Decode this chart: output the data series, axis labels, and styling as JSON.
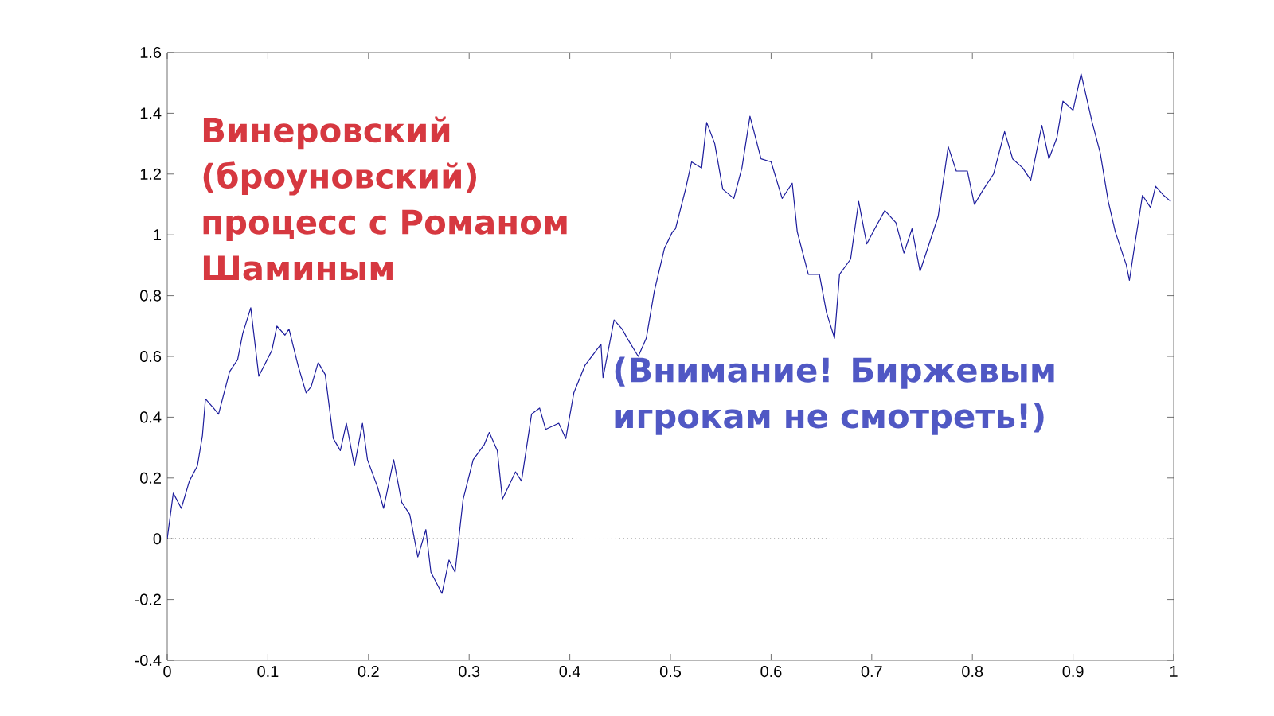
{
  "chart_data": {
    "type": "line",
    "x": [
      0,
      0.006,
      0.014,
      0.022,
      0.03,
      0.035,
      0.038,
      0.046,
      0.051,
      0.062,
      0.07,
      0.075,
      0.083,
      0.091,
      0.104,
      0.109,
      0.117,
      0.121,
      0.13,
      0.138,
      0.143,
      0.15,
      0.157,
      0.165,
      0.172,
      0.178,
      0.186,
      0.194,
      0.199,
      0.209,
      0.215,
      0.225,
      0.233,
      0.241,
      0.249,
      0.257,
      0.262,
      0.273,
      0.28,
      0.286,
      0.294,
      0.304,
      0.315,
      0.32,
      0.328,
      0.333,
      0.346,
      0.352,
      0.362,
      0.37,
      0.376,
      0.389,
      0.396,
      0.404,
      0.415,
      0.431,
      0.433,
      0.444,
      0.452,
      0.457,
      0.468,
      0.476,
      0.484,
      0.494,
      0.502,
      0.505,
      0.515,
      0.521,
      0.531,
      0.536,
      0.544,
      0.552,
      0.563,
      0.571,
      0.579,
      0.59,
      0.6,
      0.611,
      0.621,
      0.626,
      0.637,
      0.648,
      0.655,
      0.663,
      0.668,
      0.679,
      0.687,
      0.695,
      0.703,
      0.713,
      0.724,
      0.732,
      0.74,
      0.748,
      0.755,
      0.766,
      0.776,
      0.784,
      0.795,
      0.802,
      0.811,
      0.821,
      0.832,
      0.84,
      0.85,
      0.858,
      0.869,
      0.876,
      0.884,
      0.89,
      0.9,
      0.908,
      0.919,
      0.927,
      0.935,
      0.942,
      0.953,
      0.956,
      0.961,
      0.969,
      0.977,
      0.982,
      0.99,
      0.997
    ],
    "series": [
      {
        "color": "#1c1c9c",
        "values": [
          0,
          0.15,
          0.1,
          0.19,
          0.24,
          0.34,
          0.46,
          0.43,
          0.41,
          0.55,
          0.59,
          0.675,
          0.76,
          0.535,
          0.62,
          0.7,
          0.67,
          0.69,
          0.57,
          0.48,
          0.5,
          0.58,
          0.54,
          0.33,
          0.29,
          0.38,
          0.24,
          0.38,
          0.26,
          0.17,
          0.1,
          0.26,
          0.12,
          0.08,
          -0.06,
          0.03,
          -0.11,
          -0.18,
          -0.07,
          -0.11,
          0.13,
          0.26,
          0.31,
          0.35,
          0.29,
          0.13,
          0.22,
          0.19,
          0.41,
          0.43,
          0.36,
          0.38,
          0.33,
          0.48,
          0.57,
          0.64,
          0.53,
          0.72,
          0.69,
          0.66,
          0.6,
          0.66,
          0.815,
          0.955,
          1.01,
          1.02,
          1.15,
          1.24,
          1.22,
          1.37,
          1.3,
          1.15,
          1.12,
          1.22,
          1.39,
          1.25,
          1.24,
          1.12,
          1.17,
          1.01,
          0.87,
          0.87,
          0.745,
          0.66,
          0.87,
          0.92,
          1.11,
          0.97,
          1.02,
          1.08,
          1.04,
          0.94,
          1.02,
          0.88,
          0.95,
          1.06,
          1.29,
          1.21,
          1.21,
          1.1,
          1.15,
          1.2,
          1.34,
          1.25,
          1.22,
          1.18,
          1.36,
          1.25,
          1.32,
          1.44,
          1.41,
          1.53,
          1.37,
          1.27,
          1.11,
          1.01,
          0.9,
          0.85,
          0.96,
          1.13,
          1.09,
          1.16,
          1.13,
          1.11
        ]
      }
    ],
    "xlim": [
      0,
      1
    ],
    "ylim": [
      -0.4,
      1.6
    ],
    "xticks": [
      0,
      0.1,
      0.2,
      0.3,
      0.4,
      0.5,
      0.6,
      0.7,
      0.8,
      0.9,
      1
    ],
    "yticks": [
      -0.4,
      -0.2,
      0,
      0.2,
      0.4,
      0.6,
      0.8,
      1,
      1.2,
      1.4,
      1.6
    ],
    "ref_lines": [
      {
        "axis": "y",
        "value": 0,
        "color": "#000000",
        "line_style": "dotted"
      }
    ],
    "annotations": [
      "Винеровский (броуновский) процесс с Романом Шаминым",
      "(Внимание! Биржевым игрокам не смотреть!)"
    ]
  }
}
